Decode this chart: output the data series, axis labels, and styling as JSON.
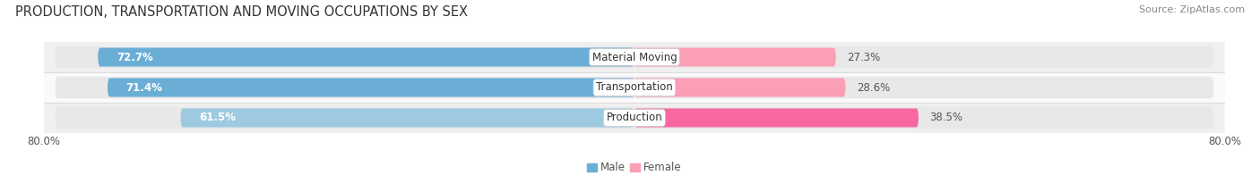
{
  "title": "PRODUCTION, TRANSPORTATION AND MOVING OCCUPATIONS BY SEX",
  "source": "Source: ZipAtlas.com",
  "categories": [
    "Material Moving",
    "Transportation",
    "Production"
  ],
  "male_pct": [
    72.7,
    71.4,
    61.5
  ],
  "female_pct": [
    27.3,
    28.6,
    38.5
  ],
  "male_color_top": "#6aaed6",
  "male_color_bot": "#9ecae1",
  "female_color_top": "#f768a1",
  "female_color_mid": "#fa9fb5",
  "female_color_bot": "#fcc5d8",
  "track_color": "#e8e8e8",
  "row_colors": [
    "#f0f0f0",
    "#fafafa",
    "#f0f0f0"
  ],
  "axis_min": -80.0,
  "axis_max": 80.0,
  "label_color": "#555555",
  "title_fontsize": 10.5,
  "source_fontsize": 8,
  "bar_label_fontsize": 8.5,
  "cat_label_fontsize": 8.5,
  "legend_fontsize": 8.5,
  "tick_fontsize": 8.5
}
